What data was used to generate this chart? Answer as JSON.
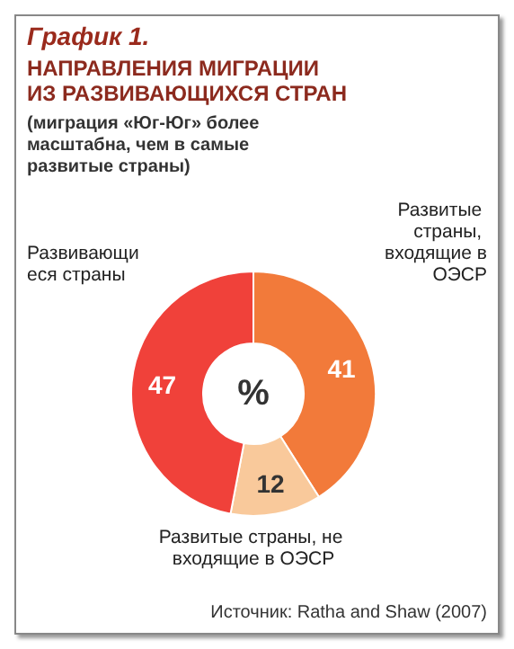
{
  "chart_data": {
    "type": "donut",
    "title": "График 1.",
    "subtitle": "НАПРАВЛЕНИЯ МИГРАЦИИ ИЗ РАЗВИВАЮЩИХСЯ СТРАН",
    "categories": [
      "Развитые страны, входящие в ОЭСР",
      "Развитые страны, не входящие в ОЭСР",
      "Развивающиеся страны"
    ],
    "values": [
      41,
      12,
      47
    ],
    "colors": [
      "#f27a3a",
      "#f9c99b",
      "#f0413a"
    ],
    "data_labels": true,
    "annotations": [
      "(миграция «Юг-Юг» более масштабна, чем в самые развитые страны)",
      "%",
      "Источник: Ratha and Shaw (2007)"
    ]
  }
}
